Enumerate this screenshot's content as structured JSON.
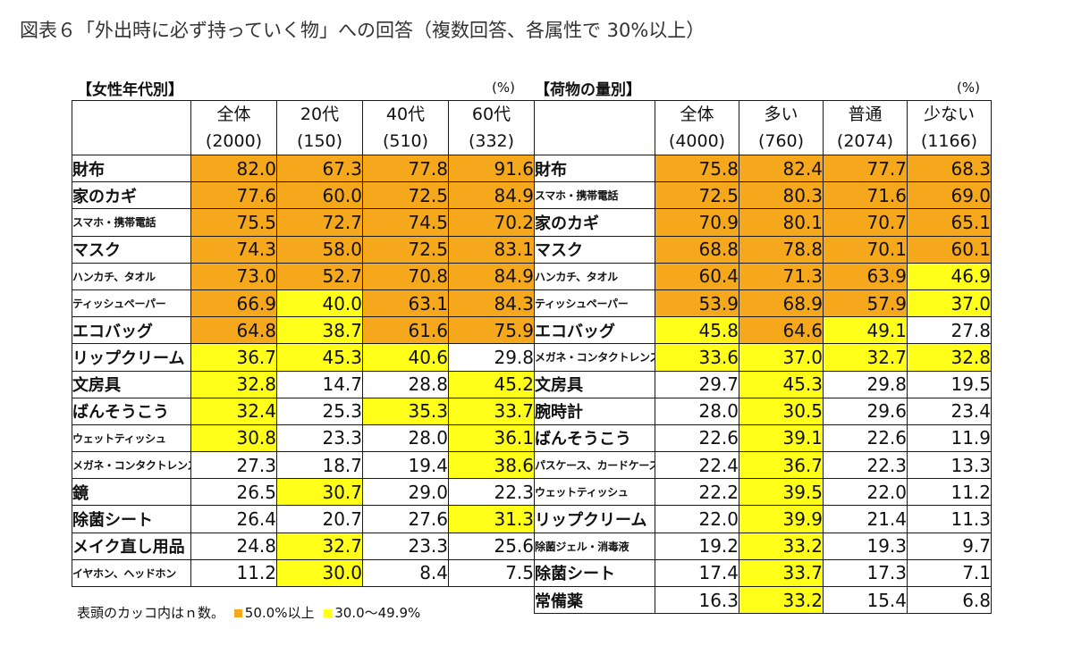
{
  "title": "図表６「外出時に必ず持っていく物」への回答（複数回答、各属性で 30%以上）",
  "colors": {
    "high": "#f5a81c",
    "mid": "#ffff1a"
  },
  "left": {
    "section_label": "【女性年代別】",
    "unit": "(%)",
    "columns": [
      {
        "name": "全体",
        "n": "(2000)"
      },
      {
        "name": "20代",
        "n": "(150)"
      },
      {
        "name": "40代",
        "n": "(510)"
      },
      {
        "name": "60代",
        "n": "(332)"
      }
    ],
    "rows": [
      {
        "label": "財布",
        "values": [
          "82.0",
          "67.3",
          "77.8",
          "91.6"
        ]
      },
      {
        "label": "家のカギ",
        "values": [
          "77.6",
          "60.0",
          "72.5",
          "84.9"
        ]
      },
      {
        "label": "スマホ・携帯電話",
        "values": [
          "75.5",
          "72.7",
          "74.5",
          "70.2"
        ]
      },
      {
        "label": "マスク",
        "values": [
          "74.3",
          "58.0",
          "72.5",
          "83.1"
        ]
      },
      {
        "label": "ハンカチ、タオル",
        "values": [
          "73.0",
          "52.7",
          "70.8",
          "84.9"
        ]
      },
      {
        "label": "ティッシュペーパー",
        "values": [
          "66.9",
          "40.0",
          "63.1",
          "84.3"
        ]
      },
      {
        "label": "エコバッグ",
        "values": [
          "64.8",
          "38.7",
          "61.6",
          "75.9"
        ]
      },
      {
        "label": "リップクリーム",
        "values": [
          "36.7",
          "45.3",
          "40.6",
          "29.8"
        ]
      },
      {
        "label": "文房具",
        "values": [
          "32.8",
          "14.7",
          "28.8",
          "45.2"
        ]
      },
      {
        "label": "ばんそうこう",
        "values": [
          "32.4",
          "25.3",
          "35.3",
          "33.7"
        ]
      },
      {
        "label": "ウェットティッシュ",
        "values": [
          "30.8",
          "23.3",
          "28.0",
          "36.1"
        ]
      },
      {
        "label": "メガネ・コンタクトレンズ",
        "values": [
          "27.3",
          "18.7",
          "19.4",
          "38.6"
        ]
      },
      {
        "label": "鏡",
        "values": [
          "26.5",
          "30.7",
          "29.0",
          "22.3"
        ]
      },
      {
        "label": "除菌シート",
        "values": [
          "26.4",
          "20.7",
          "27.6",
          "31.3"
        ]
      },
      {
        "label": "メイク直し用品",
        "values": [
          "24.8",
          "32.7",
          "23.3",
          "25.6"
        ]
      },
      {
        "label": "イヤホン、ヘッドホン",
        "values": [
          "11.2",
          "30.0",
          "8.4",
          "7.5"
        ]
      }
    ]
  },
  "right": {
    "section_label": "【荷物の量別】",
    "unit": "(%)",
    "columns": [
      {
        "name": "全体",
        "n": "(4000)"
      },
      {
        "name": "多い",
        "n": "(760)"
      },
      {
        "name": "普通",
        "n": "(2074)"
      },
      {
        "name": "少ない",
        "n": "(1166)"
      }
    ],
    "rows": [
      {
        "label": "財布",
        "values": [
          "75.8",
          "82.4",
          "77.7",
          "68.3"
        ]
      },
      {
        "label": "スマホ・携帯電話",
        "values": [
          "72.5",
          "80.3",
          "71.6",
          "69.0"
        ]
      },
      {
        "label": "家のカギ",
        "values": [
          "70.9",
          "80.1",
          "70.7",
          "65.1"
        ]
      },
      {
        "label": "マスク",
        "values": [
          "68.8",
          "78.8",
          "70.1",
          "60.1"
        ]
      },
      {
        "label": "ハンカチ、タオル",
        "values": [
          "60.4",
          "71.3",
          "63.9",
          "46.9"
        ]
      },
      {
        "label": "ティッシュペーパー",
        "values": [
          "53.9",
          "68.9",
          "57.9",
          "37.0"
        ]
      },
      {
        "label": "エコバッグ",
        "values": [
          "45.8",
          "64.6",
          "49.1",
          "27.8"
        ]
      },
      {
        "label": "メガネ・コンタクトレンズ",
        "values": [
          "33.6",
          "37.0",
          "32.7",
          "32.8"
        ]
      },
      {
        "label": "文房具",
        "values": [
          "29.7",
          "45.3",
          "29.8",
          "19.5"
        ]
      },
      {
        "label": "腕時計",
        "values": [
          "28.0",
          "30.5",
          "29.6",
          "23.4"
        ]
      },
      {
        "label": "ばんそうこう",
        "values": [
          "22.6",
          "39.1",
          "22.6",
          "11.9"
        ]
      },
      {
        "label": "パスケース、カードケース",
        "values": [
          "22.4",
          "36.7",
          "22.3",
          "13.3"
        ]
      },
      {
        "label": "ウェットティッシュ",
        "values": [
          "22.2",
          "39.5",
          "22.0",
          "11.2"
        ]
      },
      {
        "label": "リップクリーム",
        "values": [
          "22.0",
          "39.9",
          "21.4",
          "11.3"
        ]
      },
      {
        "label": "除菌ジェル・消毒液",
        "values": [
          "19.2",
          "33.2",
          "19.3",
          "9.7"
        ]
      },
      {
        "label": "除菌シート",
        "values": [
          "17.4",
          "33.7",
          "17.3",
          "7.1"
        ]
      },
      {
        "label": "常備薬",
        "values": [
          "16.3",
          "33.2",
          "15.4",
          "6.8"
        ]
      }
    ]
  },
  "note": {
    "text": "表頭のカッコ内はｎ数。",
    "legend_high": "50.0%以上",
    "legend_mid": "30.0～49.9%"
  }
}
